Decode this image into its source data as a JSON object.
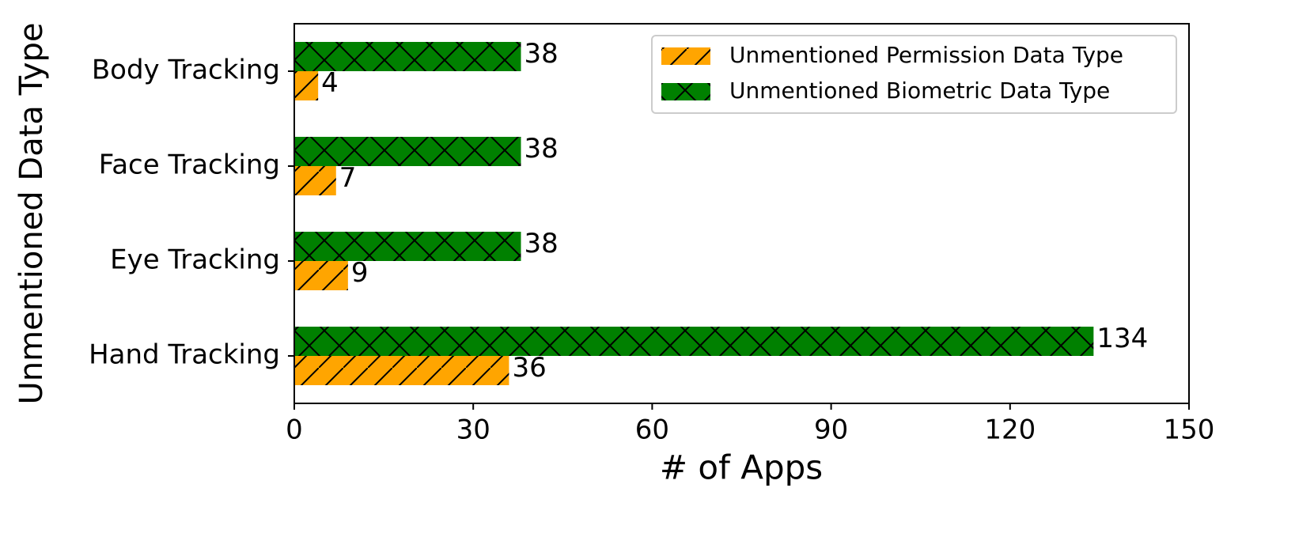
{
  "chart_data": {
    "type": "hbar",
    "x_label": "# of Apps",
    "y_label": "Unmentioned Data Type",
    "categories": [
      "Hand Tracking",
      "Eye Tracking",
      "Face Tracking",
      "Body Tracking"
    ],
    "series": [
      {
        "name": "Unmentioned Permission Data Type",
        "color": "#ffa500",
        "hatch": "/",
        "values": [
          36,
          9,
          7,
          4
        ]
      },
      {
        "name": "Unmentioned Biometric Data Type",
        "color": "#008000",
        "hatch": "x",
        "values": [
          134,
          38,
          38,
          38
        ]
      }
    ],
    "xlim": [
      0,
      150
    ],
    "xticks": [
      0,
      30,
      60,
      90,
      120,
      150
    ],
    "legend": "upper right"
  }
}
